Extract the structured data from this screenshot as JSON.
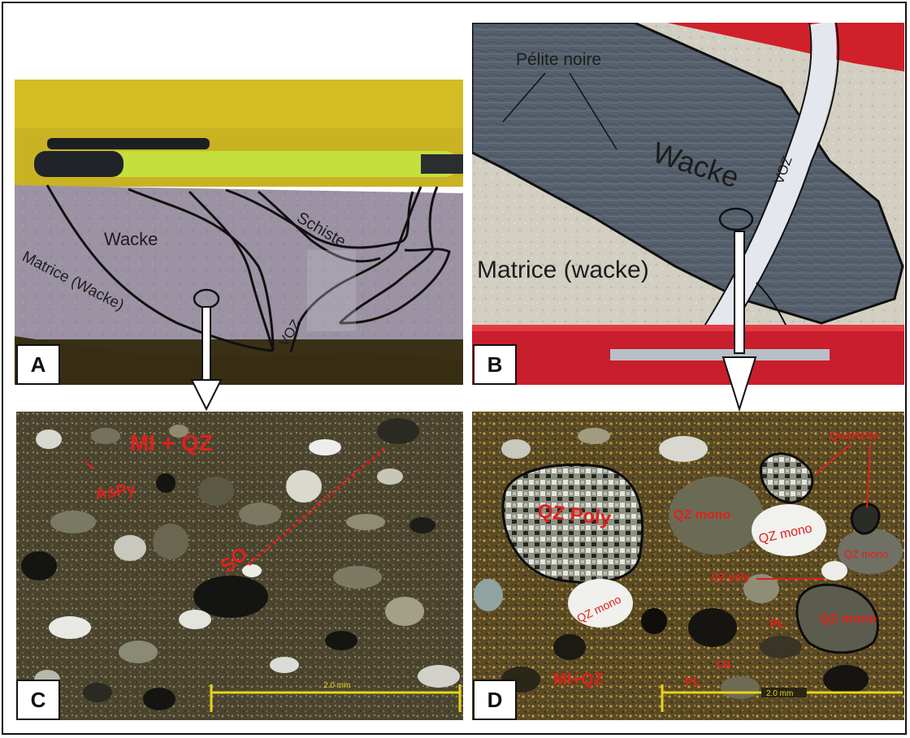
{
  "panels": {
    "a": {
      "letter": "A",
      "labels": {
        "wacke": "Wacke",
        "schiste": "Schiste",
        "matrice": "Matrice (Wacke)",
        "voz": "VOZ"
      }
    },
    "b": {
      "letter": "B",
      "labels": {
        "pelite": "Pélite noire",
        "wacke": "Wacke",
        "voz": "VOZ",
        "matrice": "Matrice (wacke)"
      }
    },
    "c": {
      "letter": "C",
      "labels": {
        "mi_qz": "MI + QZ",
        "aspy": "AsPy",
        "so": "SO"
      },
      "scale": "2.0 mm"
    },
    "d": {
      "letter": "D",
      "labels": {
        "qz_poly": "QZ Poly",
        "qz_mono_1": "QZ mono",
        "qz_mono_2": "QZ mono",
        "qz_mono_3": "QZ mono",
        "qz_mono_4": "QZ mono",
        "qz_mono_5": "QZ mono",
        "quartzite": "Quartzite",
        "qz_poly_small": "QZ poly",
        "pl_1": "PL",
        "pl_2": "PL",
        "cb": "CB",
        "mi_qz": "MI+QZ"
      },
      "scale": "2.0 mm"
    }
  },
  "colors": {
    "label_red": "#e0201c",
    "scale_yellow": "#e8d41c"
  }
}
